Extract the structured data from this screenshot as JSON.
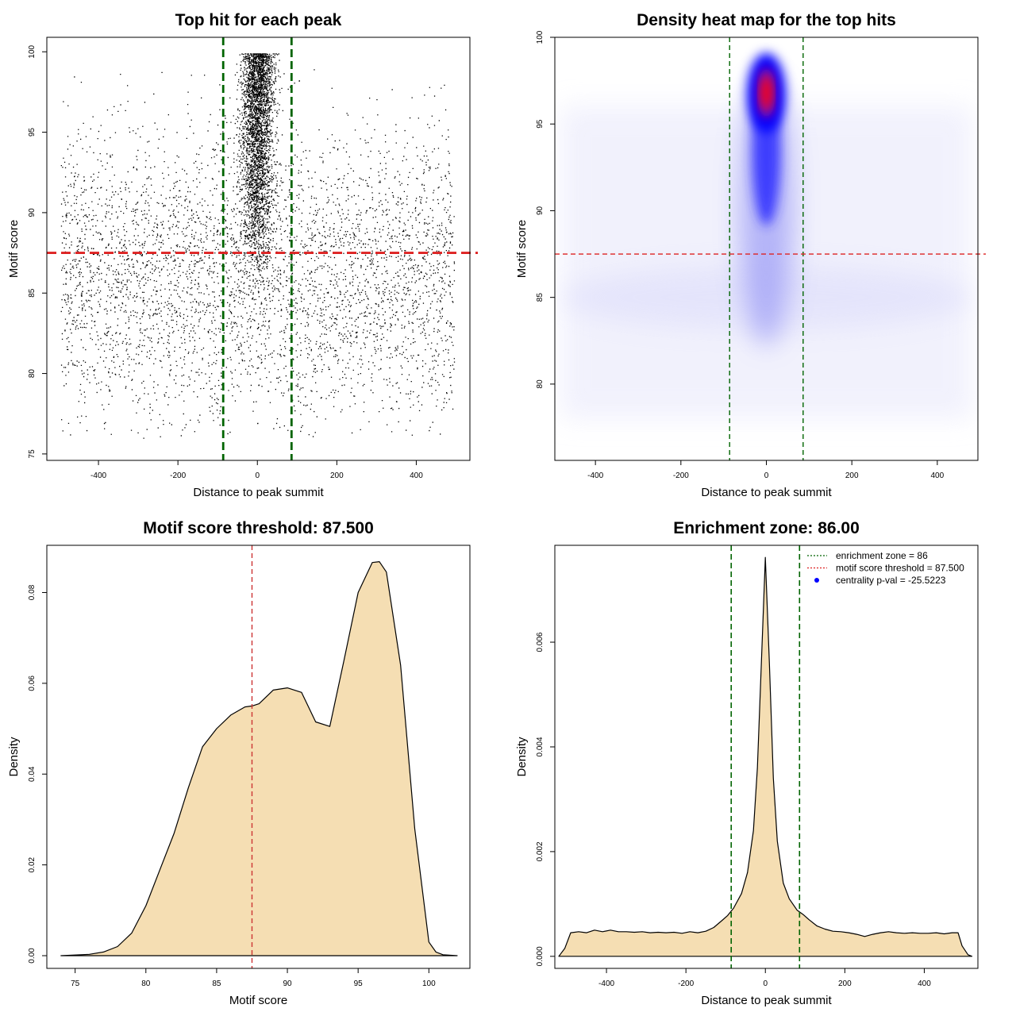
{
  "chart_data": [
    {
      "panel": "top-left",
      "type": "scatter",
      "title": "Top hit for each peak",
      "xlabel": "Distance to peak summit",
      "ylabel": "Motif score",
      "xlim": [
        -530,
        535
      ],
      "ylim": [
        74.6,
        100.9
      ],
      "xticks": [
        -400,
        -200,
        0,
        200,
        400
      ],
      "yticks": [
        75,
        80,
        85,
        90,
        95,
        100
      ],
      "vlines": [
        -86,
        86
      ],
      "hline": 87.5,
      "point_generation": {
        "n_background": 5000,
        "x_range": [
          -495,
          495
        ],
        "y_range": [
          76,
          99
        ],
        "n_central": 3400,
        "central_sd": 20,
        "central_y_range": [
          85,
          100
        ]
      },
      "colors": {
        "points": "#000000",
        "vline": "#006400",
        "hline": "#dd2222"
      }
    },
    {
      "panel": "top-right",
      "type": "heatmap",
      "title": "Density heat map for the top hits",
      "xlabel": "Distance to peak summit",
      "ylabel": "Motif score",
      "xlim": [
        -495,
        495
      ],
      "ylim": [
        75.6,
        100
      ],
      "xticks": [
        -400,
        -200,
        0,
        200,
        400
      ],
      "yticks": [
        80,
        85,
        90,
        95,
        100
      ],
      "vlines": [
        -86,
        86
      ],
      "hline": 87.5,
      "hotspot": {
        "x": 0,
        "y": 96.8
      },
      "colors": {
        "low": "#ffffff",
        "mid": "#0000ff",
        "high": "#ff0000",
        "vline": "#006400",
        "hline": "#dd2222"
      }
    },
    {
      "panel": "bottom-left",
      "type": "area",
      "title": "Motif score threshold: 87.500",
      "xlabel": "Motif score",
      "ylabel": "Density",
      "xlim": [
        73,
        102.9
      ],
      "ylim": [
        -0.0028,
        0.0904
      ],
      "xticks": [
        75,
        80,
        85,
        90,
        95,
        100
      ],
      "yticks": [
        0.0,
        0.02,
        0.04,
        0.06,
        0.08
      ],
      "ytick_labels": [
        "0.00",
        "0.02",
        "0.04",
        "0.06",
        "0.08"
      ],
      "vline": 87.5,
      "x": [
        74,
        76,
        77,
        78,
        79,
        80,
        81,
        82,
        83,
        84,
        85,
        86,
        87,
        87.5,
        88,
        89,
        90,
        91,
        92,
        93,
        94,
        95,
        96,
        96.5,
        97,
        98,
        99,
        100,
        100.5,
        101,
        102
      ],
      "y": [
        0.0,
        0.0003,
        0.0008,
        0.002,
        0.005,
        0.011,
        0.019,
        0.027,
        0.037,
        0.046,
        0.05,
        0.053,
        0.0548,
        0.055,
        0.0555,
        0.0585,
        0.059,
        0.058,
        0.0515,
        0.0505,
        0.065,
        0.08,
        0.0866,
        0.0868,
        0.0845,
        0.064,
        0.028,
        0.003,
        0.0008,
        0.0002,
        0.0
      ],
      "colors": {
        "fill": "#f5deb3",
        "line": "#000000",
        "vline": "#cc3333"
      }
    },
    {
      "panel": "bottom-right",
      "type": "area",
      "title": "Enrichment zone: 86.00",
      "xlabel": "Distance to peak summit",
      "ylabel": "Density",
      "xlim": [
        -530,
        535
      ],
      "ylim": [
        -0.00023,
        0.00785
      ],
      "xticks": [
        -400,
        -200,
        0,
        200,
        400
      ],
      "yticks": [
        0.0,
        0.002,
        0.004,
        0.006
      ],
      "ytick_labels": [
        "0.000",
        "0.002",
        "0.004",
        "0.006"
      ],
      "vlines": [
        -86,
        86
      ],
      "x": [
        -520,
        -505,
        -490,
        -470,
        -450,
        -430,
        -410,
        -390,
        -370,
        -350,
        -330,
        -310,
        -290,
        -270,
        -250,
        -230,
        -210,
        -190,
        -170,
        -150,
        -130,
        -110,
        -95,
        -80,
        -60,
        -45,
        -30,
        -20,
        -10,
        0,
        10,
        20,
        30,
        45,
        60,
        80,
        95,
        110,
        130,
        150,
        170,
        190,
        210,
        230,
        250,
        270,
        290,
        310,
        330,
        350,
        370,
        390,
        410,
        430,
        450,
        470,
        485,
        495,
        510,
        520
      ],
      "y": [
        0.0,
        0.00015,
        0.00045,
        0.00047,
        0.00045,
        0.0005,
        0.00047,
        0.0005,
        0.00047,
        0.00047,
        0.00046,
        0.00047,
        0.00045,
        0.00046,
        0.00045,
        0.00046,
        0.00044,
        0.00047,
        0.00045,
        0.00048,
        0.00055,
        0.00068,
        0.00078,
        0.00092,
        0.0012,
        0.0016,
        0.0024,
        0.0036,
        0.0056,
        0.00762,
        0.0056,
        0.0034,
        0.0022,
        0.0014,
        0.0011,
        0.00088,
        0.0008,
        0.0007,
        0.00058,
        0.00052,
        0.00048,
        0.00047,
        0.00045,
        0.00042,
        0.00038,
        0.00042,
        0.00045,
        0.00047,
        0.00045,
        0.00044,
        0.00045,
        0.00044,
        0.00044,
        0.00045,
        0.00043,
        0.00045,
        0.00045,
        0.0002,
        3e-05,
        0.0
      ],
      "legend": {
        "position": "top-right",
        "items": [
          {
            "label": "enrichment zone = 86",
            "type": "line",
            "color": "#006400"
          },
          {
            "label": "motif score threshold = 87.500",
            "type": "line",
            "color": "#dd2222"
          },
          {
            "label": "centrality p-val = -25.5223",
            "type": "point",
            "color": "#0000ff"
          }
        ]
      },
      "colors": {
        "fill": "#f5deb3",
        "line": "#000000",
        "vline": "#006400"
      }
    }
  ]
}
